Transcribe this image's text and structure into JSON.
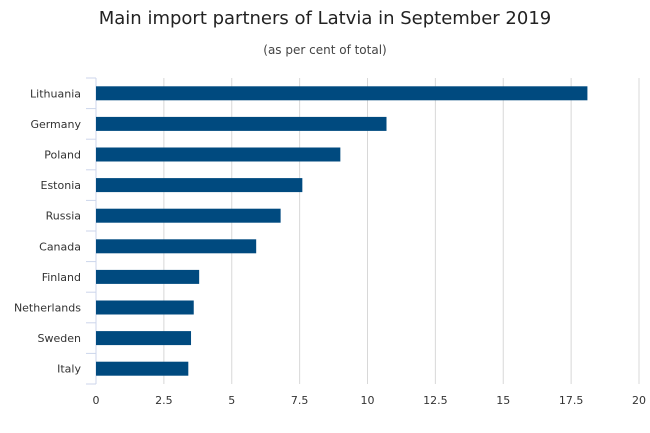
{
  "chart_data": {
    "type": "bar",
    "orientation": "horizontal",
    "title": "Main import partners of Latvia in September 2019",
    "subtitle": "(as per cent of total)",
    "categories": [
      "Lithuania",
      "Germany",
      "Poland",
      "Estonia",
      "Russia",
      "Canada",
      "Finland",
      "Netherlands",
      "Sweden",
      "Italy"
    ],
    "values": [
      18.1,
      10.7,
      9.0,
      7.6,
      6.8,
      5.9,
      3.8,
      3.6,
      3.5,
      3.4
    ],
    "xlim": [
      0,
      20
    ],
    "xticks": [
      "0",
      "2.5",
      "5",
      "7.5",
      "10",
      "12.5",
      "15",
      "17.5",
      "20"
    ],
    "grid": "vertical",
    "bar_color": "#004a7f",
    "grid_color": "#d8d8d8",
    "axis_color": "#ccd6eb"
  }
}
